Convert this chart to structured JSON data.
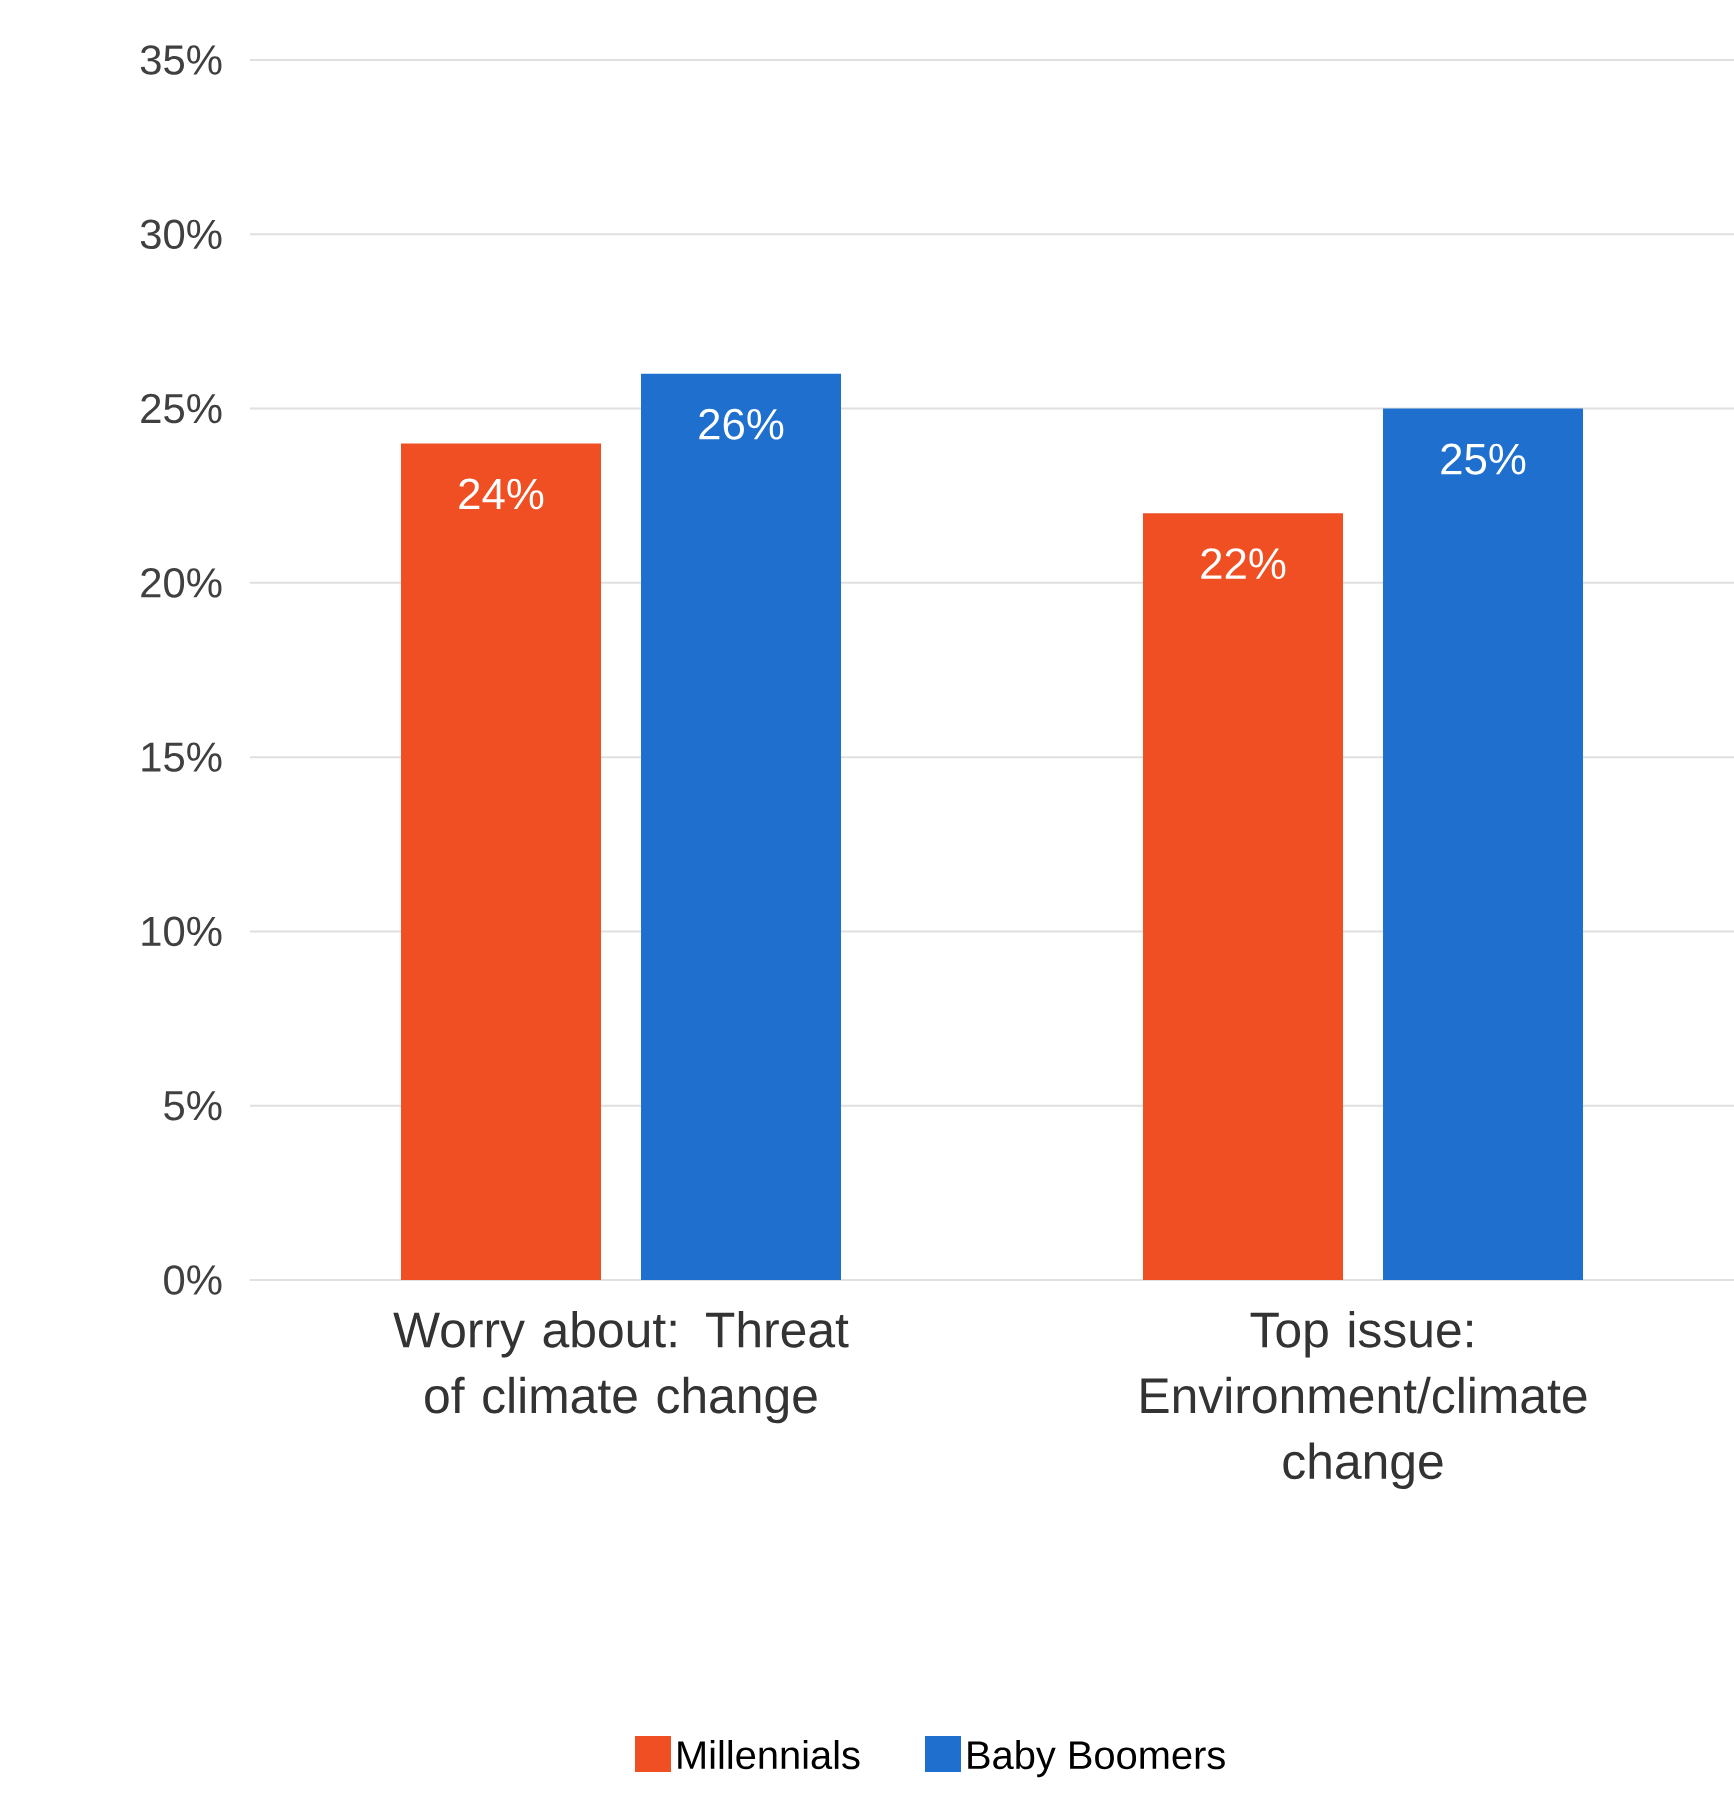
{
  "chart_data": {
    "type": "bar",
    "categories": [
      "Worry about: Threat of climate change",
      "Top issue: Environment/climate change"
    ],
    "series": [
      {
        "name": "Millennials",
        "color": "#f04e23",
        "values": [
          24,
          22
        ],
        "value_labels": [
          "24%",
          "22%"
        ]
      },
      {
        "name": "Baby Boomers",
        "color": "#1f6fcf",
        "values": [
          26,
          25
        ],
        "value_labels": [
          "26%",
          "25%"
        ]
      }
    ],
    "ylim": [
      0,
      35
    ],
    "yticks": [
      {
        "value": 0,
        "label": "0%"
      },
      {
        "value": 5,
        "label": "5%"
      },
      {
        "value": 10,
        "label": "10%"
      },
      {
        "value": 15,
        "label": "15%"
      },
      {
        "value": 20,
        "label": "20%"
      },
      {
        "value": 25,
        "label": "25%"
      },
      {
        "value": 30,
        "label": "30%"
      },
      {
        "value": 35,
        "label": "35%"
      }
    ],
    "grid": "y",
    "legend": "bottom"
  }
}
